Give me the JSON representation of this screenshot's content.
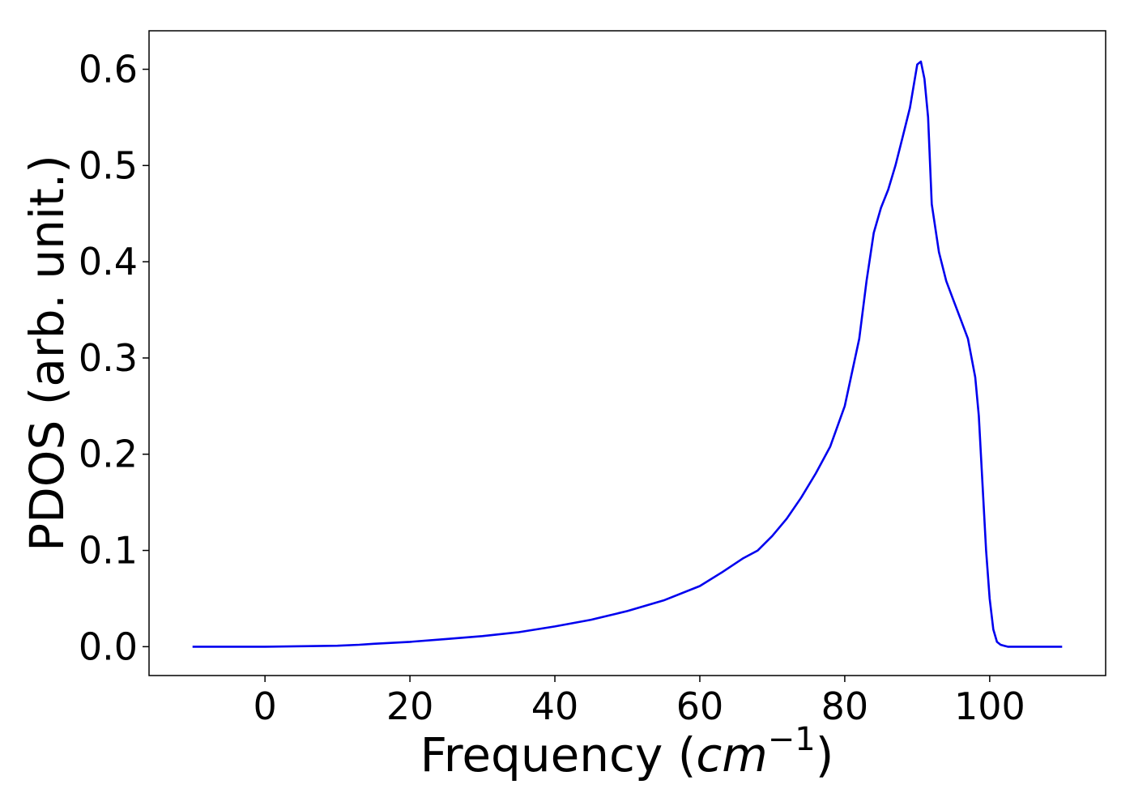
{
  "chart_data": {
    "type": "line",
    "title": "",
    "xlabel": "Frequency (",
    "xlabel_unit": "cm",
    "xlabel_exp": "−1",
    "xlabel_close": ")",
    "ylabel": "PDOS (arb. unit.)",
    "xlim": [
      -16,
      116
    ],
    "ylim": [
      -0.03,
      0.64
    ],
    "xticks": [
      0,
      20,
      40,
      60,
      80,
      100
    ],
    "yticks": [
      0.0,
      0.1,
      0.2,
      0.3,
      0.4,
      0.5,
      0.6
    ],
    "xtick_labels": [
      "0",
      "20",
      "40",
      "60",
      "80",
      "100"
    ],
    "ytick_labels": [
      "0.0",
      "0.1",
      "0.2",
      "0.3",
      "0.4",
      "0.5",
      "0.6"
    ],
    "grid": false,
    "series": [
      {
        "color": "#0000ee",
        "x": [
          -10,
          0,
          5,
          10,
          13,
          15,
          20,
          25,
          30,
          35,
          40,
          45,
          50,
          55,
          60,
          63,
          66,
          68,
          70,
          72,
          74,
          76,
          78,
          80,
          82,
          83,
          84,
          85,
          86,
          87,
          88,
          89,
          90,
          90.5,
          91,
          91.5,
          92,
          93,
          94,
          95,
          96,
          97,
          98,
          98.5,
          99,
          99.5,
          100,
          100.5,
          101,
          101.5,
          102,
          102.5,
          103,
          104,
          106,
          110
        ],
        "y": [
          0,
          0,
          0.0005,
          0.001,
          0.002,
          0.003,
          0.005,
          0.008,
          0.011,
          0.015,
          0.021,
          0.028,
          0.037,
          0.048,
          0.063,
          0.077,
          0.092,
          0.1,
          0.115,
          0.133,
          0.155,
          0.18,
          0.208,
          0.25,
          0.32,
          0.38,
          0.43,
          0.456,
          0.475,
          0.5,
          0.53,
          0.56,
          0.605,
          0.608,
          0.59,
          0.55,
          0.46,
          0.41,
          0.38,
          0.36,
          0.34,
          0.32,
          0.28,
          0.24,
          0.17,
          0.1,
          0.05,
          0.018,
          0.005,
          0.002,
          0.001,
          0,
          0,
          0,
          0,
          0
        ]
      }
    ]
  }
}
